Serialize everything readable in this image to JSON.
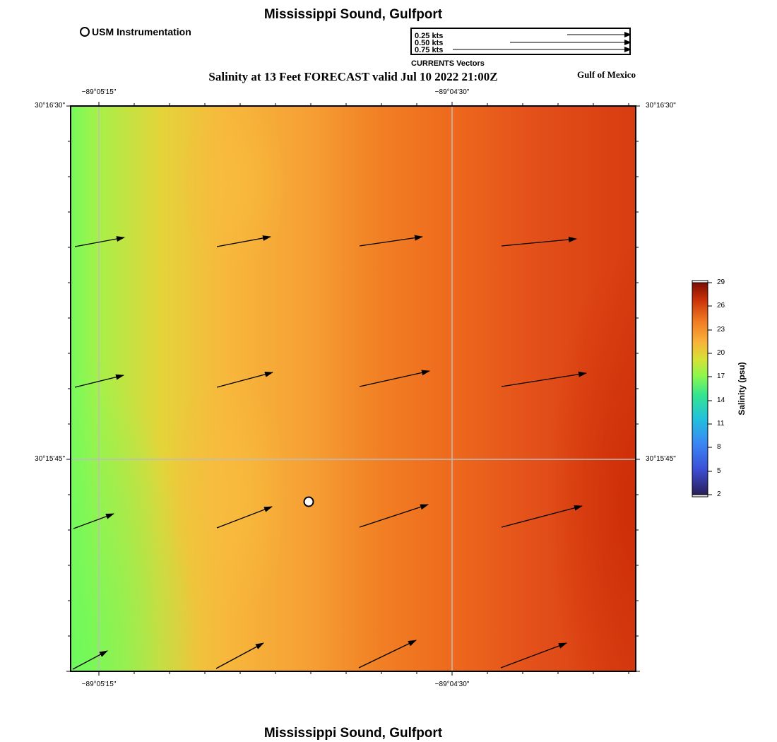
{
  "map": {
    "title_top": "Mississippi Sound, Gulfport",
    "title_bottom": "Mississippi Sound, Gulfport",
    "subtitle": "Salinity at 13 Feet FORECAST valid Jul 10 2022 21:00Z",
    "region_label": "Gulf of Mexico",
    "station_legend": "USM Instrumentation",
    "station_icon": "station-circle-icon"
  },
  "vector_legend": {
    "caption": "CURRENTS Vectors",
    "entries": [
      {
        "label": "0.25 kts",
        "knots": 0.25
      },
      {
        "label": "0.50 kts",
        "knots": 0.5
      },
      {
        "label": "0.75 kts",
        "knots": 0.75
      }
    ]
  },
  "axes": {
    "lon_top": [
      "−89°05'15\"",
      "−89°04'30\""
    ],
    "lon_bottom": [
      "−89°05'15\"",
      "−89°04'30\""
    ],
    "lat_left": [
      "30°16'30\"",
      "30°15'45\""
    ],
    "lat_right": [
      "30°16'30\"",
      "30°15'45\""
    ]
  },
  "colorbar": {
    "title": "Salinity (psu)",
    "ticks": [
      "29",
      "26",
      "23",
      "20",
      "17",
      "14",
      "11",
      "8",
      "5",
      "2"
    ],
    "min": 2,
    "max": 29
  },
  "colors": {
    "low": "#7dfc57",
    "mid": "#f7b43b",
    "high": "#d83a0a",
    "arrow": "#000000",
    "grid": "#bdbdbd"
  }
}
